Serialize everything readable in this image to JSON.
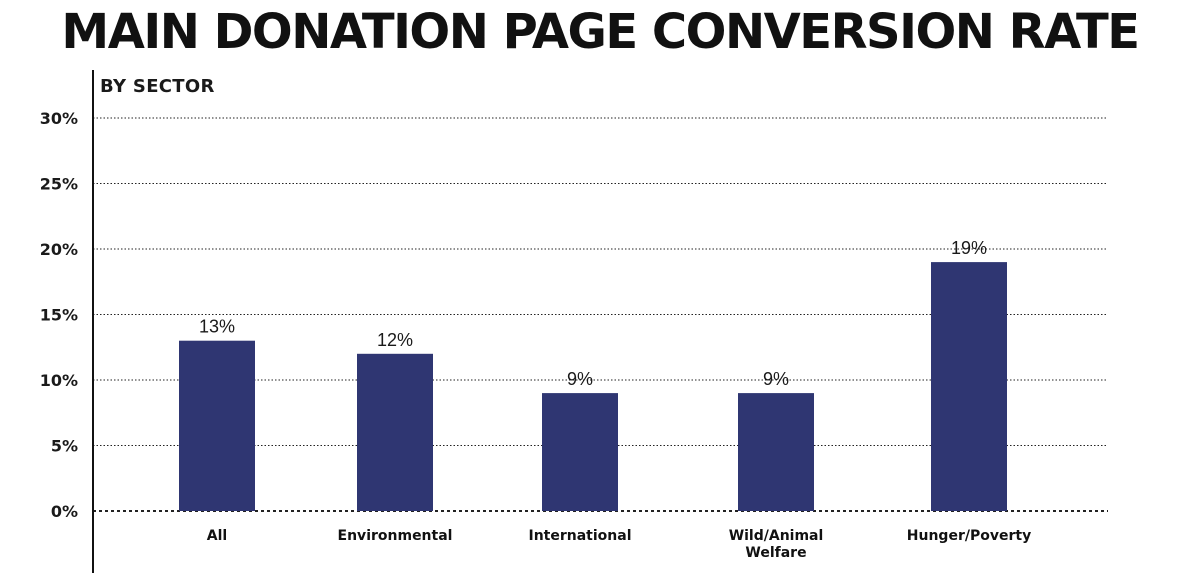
{
  "chart_data": {
    "type": "bar",
    "title": "MAIN DONATION PAGE CONVERSION RATE",
    "subtitle": "BY SECTOR",
    "categories": [
      "All",
      "Environmental",
      "International",
      "Wild/Animal Welfare",
      "Hunger/Poverty"
    ],
    "category_lines": [
      [
        "All"
      ],
      [
        "Environmental"
      ],
      [
        "International"
      ],
      [
        "Wild/Animal",
        "Welfare"
      ],
      [
        "Hunger/Poverty"
      ]
    ],
    "values": [
      13,
      12,
      9,
      9,
      19
    ],
    "data_labels": [
      "13%",
      "12%",
      "9%",
      "9%",
      "19%"
    ],
    "ylim": [
      0,
      30
    ],
    "yticks": [
      0,
      5,
      10,
      15,
      20,
      25,
      30
    ],
    "ytick_labels": [
      "0%",
      "5%",
      "10%",
      "15%",
      "20%",
      "25%",
      "30%"
    ],
    "grid": true,
    "bar_color": "#2f3672"
  }
}
